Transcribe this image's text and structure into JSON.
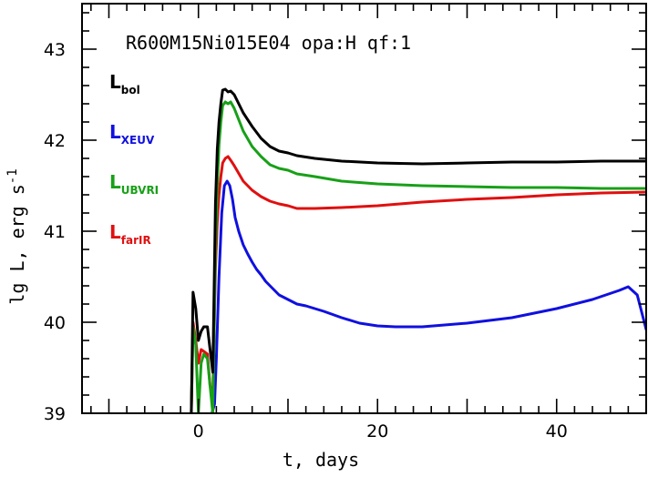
{
  "chart_data": {
    "type": "line",
    "title": "R600M15Ni015E04 opa:H qf:1",
    "xlabel": "t, days",
    "ylabel_text": "lg L, erg s",
    "ylabel_sup": "-1",
    "xlim": [
      -13,
      50
    ],
    "ylim": [
      39,
      43.5
    ],
    "x_ticks": [
      0,
      20,
      40
    ],
    "x_minor_step": 2,
    "y_ticks": [
      39,
      40,
      41,
      42,
      43
    ],
    "y_minor_step": 0.2,
    "grid": false,
    "legend_position": "top-left",
    "series": [
      {
        "name": "L",
        "sub": "bol",
        "color": "#000000",
        "x": [
          -0.8,
          -0.6,
          -0.3,
          0,
          0.3,
          0.6,
          1.0,
          1.3,
          1.6,
          1.9,
          2.1,
          2.3,
          2.5,
          2.7,
          3.0,
          3.3,
          3.6,
          4.0,
          5.0,
          6.0,
          7.0,
          8.0,
          9.0,
          10.0,
          11.0,
          13.0,
          16.0,
          20.0,
          25.0,
          30.0,
          35.0,
          40.0,
          45.0,
          50.0
        ],
        "y": [
          39.0,
          40.33,
          40.15,
          39.8,
          39.9,
          39.95,
          39.95,
          39.7,
          39.45,
          41.3,
          41.9,
          42.2,
          42.4,
          42.55,
          42.56,
          42.53,
          42.54,
          42.5,
          42.3,
          42.15,
          42.02,
          41.93,
          41.88,
          41.86,
          41.83,
          41.8,
          41.77,
          41.75,
          41.74,
          41.75,
          41.76,
          41.76,
          41.77,
          41.77
        ]
      },
      {
        "name": "L",
        "sub": "XEUV",
        "color": "#1010e0",
        "x": [
          1.5,
          1.8,
          2.0,
          2.3,
          2.6,
          2.9,
          3.2,
          3.5,
          3.8,
          4.1,
          4.5,
          5.0,
          5.5,
          6.0,
          6.5,
          7.0,
          7.5,
          8.0,
          9.0,
          10.0,
          11.0,
          12.0,
          14.0,
          16.0,
          18.0,
          20.0,
          22.0,
          25.0,
          30.0,
          35.0,
          40.0,
          44.0,
          47.0,
          48.0,
          49.0,
          50.0
        ],
        "y": [
          39.0,
          39.1,
          39.6,
          40.5,
          41.2,
          41.5,
          41.55,
          41.5,
          41.35,
          41.15,
          41.0,
          40.85,
          40.75,
          40.66,
          40.58,
          40.52,
          40.45,
          40.4,
          40.3,
          40.25,
          40.2,
          40.18,
          40.12,
          40.05,
          39.99,
          39.96,
          39.95,
          39.95,
          39.99,
          40.05,
          40.15,
          40.25,
          40.35,
          40.39,
          40.3,
          39.92
        ]
      },
      {
        "name": "L",
        "sub": "UBVRI",
        "color": "#18a018",
        "x": [
          -0.8,
          -0.6,
          -0.3,
          0,
          0.3,
          0.6,
          1.0,
          1.3,
          1.6,
          1.9,
          2.1,
          2.3,
          2.5,
          2.7,
          3.0,
          3.3,
          3.6,
          4.0,
          5.0,
          6.0,
          7.0,
          8.0,
          9.0,
          10.0,
          11.0,
          13.0,
          16.0,
          20.0,
          25.0,
          30.0,
          35.0,
          40.0,
          45.0,
          50.0
        ],
        "y": [
          39.0,
          39.95,
          39.75,
          39.0,
          39.55,
          39.65,
          39.6,
          39.3,
          39.0,
          40.8,
          41.5,
          41.95,
          42.2,
          42.38,
          42.42,
          42.4,
          42.42,
          42.35,
          42.1,
          41.93,
          41.82,
          41.73,
          41.69,
          41.67,
          41.63,
          41.6,
          41.55,
          41.52,
          41.5,
          41.49,
          41.48,
          41.48,
          41.47,
          41.47
        ]
      },
      {
        "name": "L",
        "sub": "farIR",
        "color": "#e01010",
        "x": [
          -0.8,
          -0.6,
          -0.3,
          0,
          0.3,
          0.6,
          1.0,
          1.3,
          1.6,
          1.9,
          2.1,
          2.3,
          2.5,
          2.7,
          3.0,
          3.3,
          3.6,
          4.0,
          5.0,
          6.0,
          7.0,
          8.0,
          9.0,
          10.0,
          11.0,
          13.0,
          16.0,
          20.0,
          25.0,
          30.0,
          35.0,
          40.0,
          45.0,
          50.0
        ],
        "y": [
          39.0,
          40.0,
          39.8,
          39.55,
          39.7,
          39.68,
          39.65,
          39.3,
          39.2,
          40.6,
          41.1,
          41.4,
          41.6,
          41.75,
          41.8,
          41.82,
          41.78,
          41.72,
          41.55,
          41.45,
          41.38,
          41.33,
          41.3,
          41.28,
          41.25,
          41.25,
          41.26,
          41.28,
          41.32,
          41.35,
          41.37,
          41.4,
          41.42,
          41.43
        ]
      }
    ]
  }
}
